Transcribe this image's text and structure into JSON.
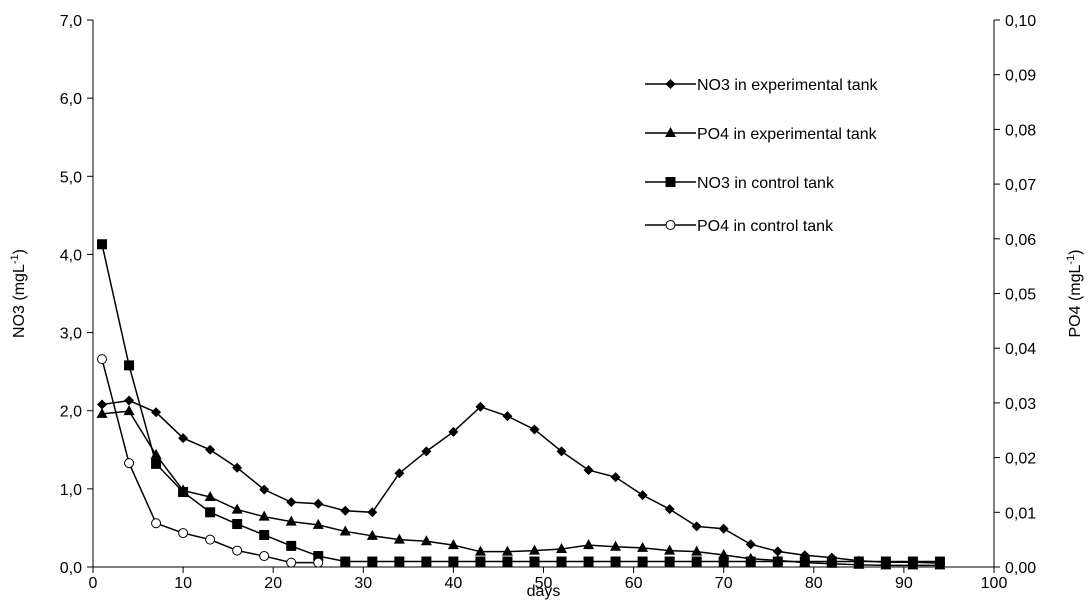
{
  "chart_data": {
    "type": "line",
    "xlabel": "days",
    "ylabel_left": "NO3 (mgL",
    "ylabel_left_sup": "-1",
    "ylabel_left_end": ")",
    "ylabel_right": "PO4 (mgL",
    "ylabel_right_sup": "-1",
    "ylabel_right_end": ")",
    "xlim": [
      0,
      100
    ],
    "ylim_left": [
      0,
      7
    ],
    "ylim_right": [
      0,
      0.1
    ],
    "x_ticks": [
      "0",
      "10",
      "20",
      "30",
      "40",
      "50",
      "60",
      "70",
      "80",
      "90",
      "100"
    ],
    "y_left_ticks": [
      "0,0",
      "1,0",
      "2,0",
      "3,0",
      "4,0",
      "5,0",
      "6,0",
      "7,0"
    ],
    "y_right_ticks": [
      "0,00",
      "0,01",
      "0,02",
      "0,03",
      "0,04",
      "0,05",
      "0,06",
      "0,07",
      "0,08",
      "0,09",
      "0,10"
    ],
    "grid": false,
    "legend_position": "top-right",
    "series": [
      {
        "name": "NO3 in experimental tank",
        "axis": "left",
        "marker": "diamond",
        "x": [
          1,
          4,
          7,
          10,
          13,
          16,
          19,
          22,
          25,
          28,
          31,
          34,
          37,
          40,
          43,
          46,
          49,
          52,
          55,
          58,
          61,
          64,
          67,
          70,
          73,
          76,
          79,
          82,
          85,
          88,
          91,
          94
        ],
        "y": [
          2.08,
          2.13,
          1.98,
          1.65,
          1.5,
          1.27,
          0.99,
          0.83,
          0.81,
          0.72,
          0.7,
          1.2,
          1.48,
          1.73,
          2.05,
          1.93,
          1.76,
          1.48,
          1.24,
          1.15,
          0.92,
          0.74,
          0.52,
          0.49,
          0.29,
          0.2,
          0.15,
          0.12,
          0.08,
          0.06,
          0.06,
          0.05
        ]
      },
      {
        "name": "PO4 in experimental tank",
        "axis": "right",
        "marker": "triangle",
        "x": [
          1,
          4,
          7,
          10,
          13,
          16,
          19,
          22,
          25,
          28,
          31,
          34,
          37,
          40,
          43,
          46,
          49,
          52,
          55,
          58,
          61,
          64,
          67,
          70,
          73,
          76,
          79,
          82,
          85,
          88,
          91,
          94
        ],
        "y": [
          0.028,
          0.0285,
          0.0205,
          0.014,
          0.0128,
          0.0105,
          0.0092,
          0.0083,
          0.0077,
          0.0065,
          0.0057,
          0.005,
          0.0047,
          0.004,
          0.0028,
          0.0028,
          0.003,
          0.0033,
          0.004,
          0.0037,
          0.0035,
          0.003,
          0.0028,
          0.0022,
          0.0015,
          0.0012,
          0.0008,
          0.0006,
          0.0004,
          0.0003,
          0.0003,
          0.0003
        ]
      },
      {
        "name": "NO3 in control tank",
        "axis": "left",
        "marker": "square",
        "x": [
          1,
          4,
          7,
          10,
          13,
          16,
          19,
          22,
          25,
          28,
          31,
          34,
          37,
          40,
          43,
          46,
          49,
          52,
          55,
          58,
          61,
          64,
          67,
          70,
          73,
          76,
          79,
          82,
          85,
          88,
          91,
          94
        ],
        "y": [
          4.13,
          2.58,
          1.32,
          0.96,
          0.7,
          0.55,
          0.41,
          0.27,
          0.14,
          0.07,
          0.07,
          0.07,
          0.07,
          0.07,
          0.07,
          0.07,
          0.07,
          0.07,
          0.07,
          0.07,
          0.07,
          0.07,
          0.07,
          0.07,
          0.07,
          0.07,
          0.07,
          0.07,
          0.07,
          0.07,
          0.07,
          0.07
        ]
      },
      {
        "name": "PO4 in control tank",
        "axis": "right",
        "marker": "circle-open",
        "x": [
          1,
          4,
          7,
          10,
          13,
          16,
          19,
          22,
          25
        ],
        "y": [
          0.038,
          0.019,
          0.008,
          0.0062,
          0.005,
          0.003,
          0.002,
          0.0008,
          0.0008
        ]
      }
    ]
  }
}
